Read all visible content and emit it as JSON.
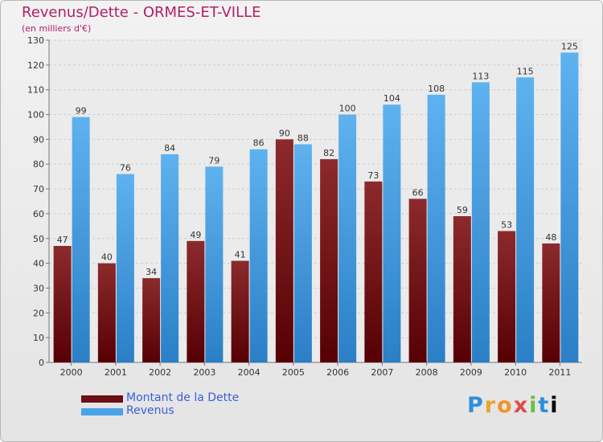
{
  "chart_data": {
    "type": "bar",
    "title": "Revenus/Dette - ORMES-ET-VILLE",
    "subtitle": "(en milliers d'€)",
    "categories": [
      "2000",
      "2001",
      "2002",
      "2003",
      "2004",
      "2005",
      "2006",
      "2007",
      "2008",
      "2009",
      "2010",
      "2011"
    ],
    "series": [
      {
        "name": "Montant de la Dette",
        "color": "#6e0f12",
        "values": [
          47,
          40,
          34,
          49,
          41,
          90,
          82,
          73,
          66,
          59,
          53,
          48
        ]
      },
      {
        "name": "Revenus",
        "color": "#4aa3e8",
        "values": [
          99,
          76,
          84,
          79,
          86,
          88,
          100,
          104,
          108,
          113,
          115,
          125
        ]
      }
    ],
    "ylim": [
      0,
      130
    ],
    "yticks": [
      0,
      10,
      20,
      30,
      40,
      50,
      60,
      70,
      80,
      90,
      100,
      110,
      120,
      130
    ],
    "grid": true,
    "legend_position": "bottom-left"
  },
  "logo": {
    "letters": [
      "P",
      "r",
      "o",
      "x",
      "i",
      "t",
      "i"
    ]
  }
}
